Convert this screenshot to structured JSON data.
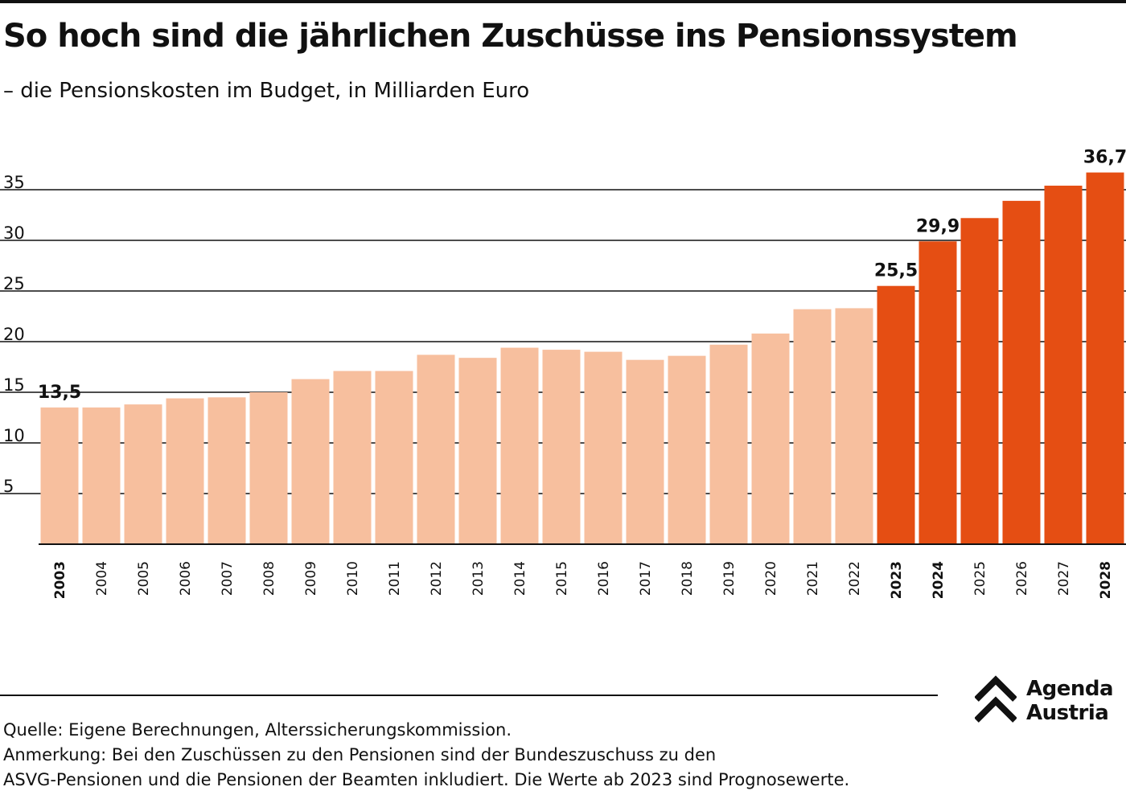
{
  "title": "So hoch sind die jährlichen Zuschüsse ins Pensionssystem",
  "subtitle": "– die Pensionskosten im Budget, in Milliarden Euro",
  "chart_data": {
    "type": "bar",
    "title": "So hoch sind die jährlichen Zuschüsse ins Pensionssystem",
    "subtitle": "– die Pensionskosten im Budget, in Milliarden Euro",
    "xlabel": "",
    "ylabel": "",
    "ylim": [
      0,
      37
    ],
    "yticks": [
      5,
      10,
      15,
      20,
      25,
      30,
      35
    ],
    "grid": true,
    "categories": [
      "2003",
      "2004",
      "2005",
      "2006",
      "2007",
      "2008",
      "2009",
      "2010",
      "2011",
      "2012",
      "2013",
      "2014",
      "2015",
      "2016",
      "2017",
      "2018",
      "2019",
      "2020",
      "2021",
      "2022",
      "2023",
      "2024",
      "2025",
      "2026",
      "2027",
      "2028"
    ],
    "values": [
      13.5,
      13.5,
      13.8,
      14.4,
      14.5,
      15.0,
      16.3,
      17.1,
      17.1,
      18.7,
      18.4,
      19.4,
      19.2,
      19.0,
      18.2,
      18.6,
      19.7,
      20.8,
      23.2,
      23.3,
      25.5,
      29.9,
      32.2,
      33.9,
      35.4,
      36.7
    ],
    "bold_categories": [
      "2003",
      "2023",
      "2024",
      "2028"
    ],
    "data_labels": {
      "2003": "13,5",
      "2023": "25,5",
      "2024": "29,9",
      "2028": "36,7"
    },
    "forecast_from": "2023",
    "colors": {
      "historical": "#f7bf9e",
      "forecast": "#e54e13",
      "axis": "#111111",
      "grid": "#111111"
    }
  },
  "footer": {
    "source": "Quelle: Eigene Berechnungen, Alterssicherungskommission.",
    "note_line1": "Anmerkung: Bei den Zuschüssen zu den Pensionen sind der Bundeszuschuss zu den",
    "note_line2": "ASVG-Pensionen und die Pensionen der Beamten inkludiert. Die Werte ab 2023 sind Prognosewerte."
  },
  "logo": {
    "line1": "Agenda",
    "line2": "Austria"
  }
}
